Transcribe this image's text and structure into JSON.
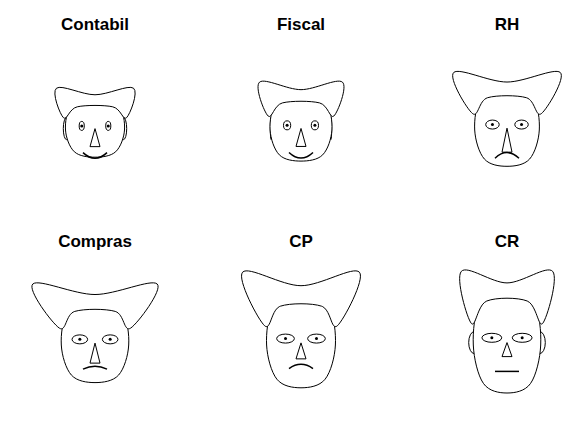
{
  "chart_data": {
    "type": "faces",
    "categories": [
      "Contabil",
      "Fiscal",
      "RH",
      "Compras",
      "CP",
      "CR"
    ],
    "values": [
      [
        0.2,
        0.25,
        0.3,
        0.3,
        0.1,
        0.5,
        0.9,
        0.4
      ],
      [
        0.35,
        0.35,
        0.4,
        0.35,
        0.2,
        0.5,
        0.9,
        0.1
      ],
      [
        0.55,
        0.45,
        0.6,
        0.7,
        0.5,
        0.8,
        0.1,
        0.0
      ],
      [
        0.6,
        0.55,
        0.7,
        0.95,
        0.6,
        0.6,
        0.3,
        0.0
      ],
      [
        0.8,
        0.6,
        1.0,
        0.8,
        0.7,
        0.4,
        0.2,
        0.0
      ],
      [
        1.0,
        0.55,
        0.8,
        0.4,
        0.8,
        0.3,
        0.5,
        0.7
      ]
    ],
    "tick_labels": false
  }
}
